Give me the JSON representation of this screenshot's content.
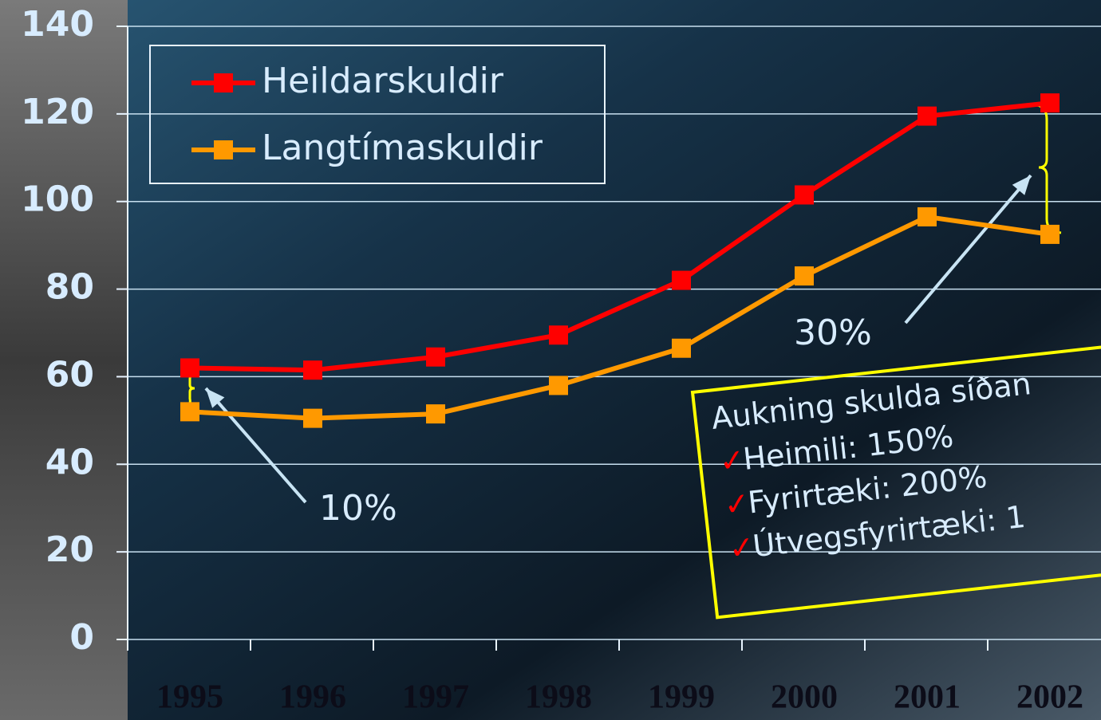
{
  "chart_data": {
    "type": "line",
    "categories": [
      "1995",
      "1996",
      "1997",
      "1998",
      "1999",
      "2000",
      "2001",
      "2002"
    ],
    "series": [
      {
        "name": "Heildarskuldir",
        "color": "#ff0000",
        "values": [
          62,
          61.5,
          64.5,
          69.5,
          82,
          101.5,
          119.5,
          122.5
        ]
      },
      {
        "name": "Langtímaskuldir",
        "color": "#ff9900",
        "values": [
          52,
          50.5,
          51.5,
          58,
          66.5,
          83,
          96.5,
          92.5
        ]
      }
    ],
    "ylim": [
      0,
      140
    ],
    "yticks": [
      0,
      20,
      40,
      60,
      80,
      100,
      120,
      140
    ],
    "grid": true,
    "annotations": [
      "10%",
      "30%"
    ],
    "note": {
      "title": "Aukning skulda síðan",
      "items": [
        "Heimili: 150%",
        "Fyrirtæki: 200%",
        "Útvegsfyrirtæki: 1"
      ]
    }
  }
}
